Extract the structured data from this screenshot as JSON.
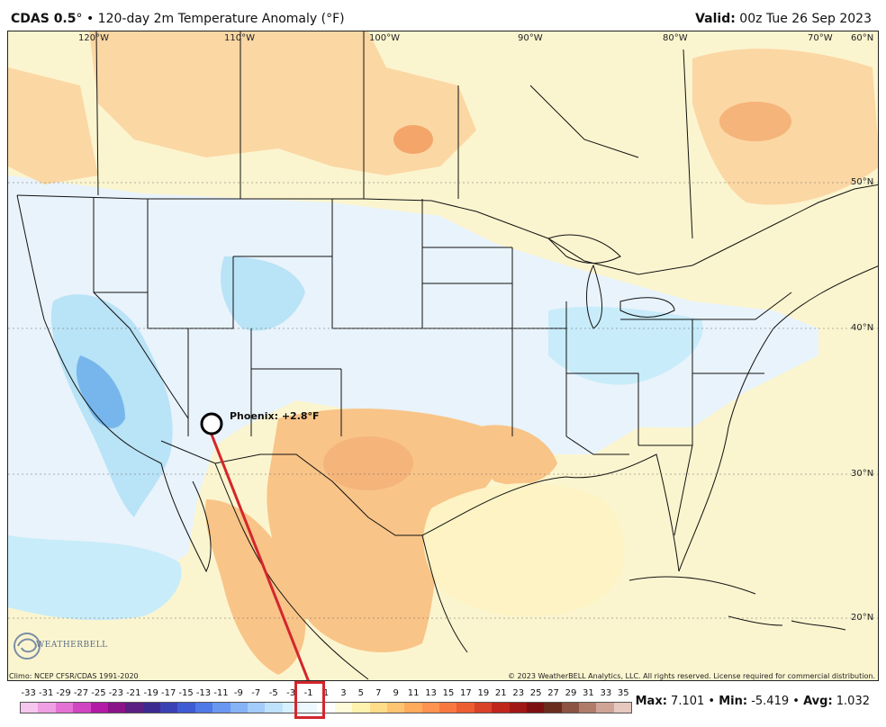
{
  "header": {
    "model": "CDAS 0.5",
    "degree": "°",
    "bullet": "•",
    "title": "120-day 2m Temperature Anomaly (°F)",
    "valid_label": "Valid:",
    "valid_value": "00z Tue 26 Sep 2023"
  },
  "longitudes": [
    "120°W",
    "110°W",
    "100°W",
    "90°W",
    "80°W",
    "70°W",
    "60°N"
  ],
  "latitudes": [
    "50°N",
    "40°N",
    "30°N",
    "20°N"
  ],
  "marker": {
    "label": "Phoenix: +2.8°F"
  },
  "footer": {
    "climo": "Climo: NCEP CFSR/CDAS 1991-2020",
    "copyright": "© 2023 WeatherBELL Analytics, LLC. All rights reserved. License required for commercial distribution.",
    "logo_text": "WEATHERBELL"
  },
  "colorbar": {
    "labels": [
      "-33",
      "-31",
      "-29",
      "-27",
      "-25",
      "-23",
      "-21",
      "-19",
      "-17",
      "-15",
      "-13",
      "-11",
      "-9",
      "-7",
      "-5",
      "-3",
      "-1",
      "1",
      "3",
      "5",
      "7",
      "9",
      "11",
      "13",
      "15",
      "17",
      "19",
      "21",
      "23",
      "25",
      "27",
      "29",
      "31",
      "33",
      "35"
    ],
    "colors": [
      "#f7c6ee",
      "#ef9fe3",
      "#e472d4",
      "#d245c2",
      "#b31aa6",
      "#8a1387",
      "#5c1f83",
      "#3d2a91",
      "#3a41b5",
      "#3e5bd3",
      "#4f79e6",
      "#6a97f0",
      "#86b2f6",
      "#a3ccfa",
      "#bfe2fc",
      "#d8f1fe",
      "#eef8ff",
      "#ffffff",
      "#fffbd8",
      "#fff1ae",
      "#ffdc88",
      "#ffc470",
      "#ffab5c",
      "#ff9350",
      "#f9783f",
      "#ec5d32",
      "#d94128",
      "#c1261d",
      "#a11715",
      "#7e0f10",
      "#6a2c1d",
      "#8c5343",
      "#b07c6a",
      "#cfa497",
      "#e7c8bf"
    ]
  },
  "stats": {
    "max_label": "Max:",
    "max_value": "7.101",
    "min_label": "Min:",
    "min_value": "-5.419",
    "avg_label": "Avg:",
    "avg_value": "1.032"
  }
}
